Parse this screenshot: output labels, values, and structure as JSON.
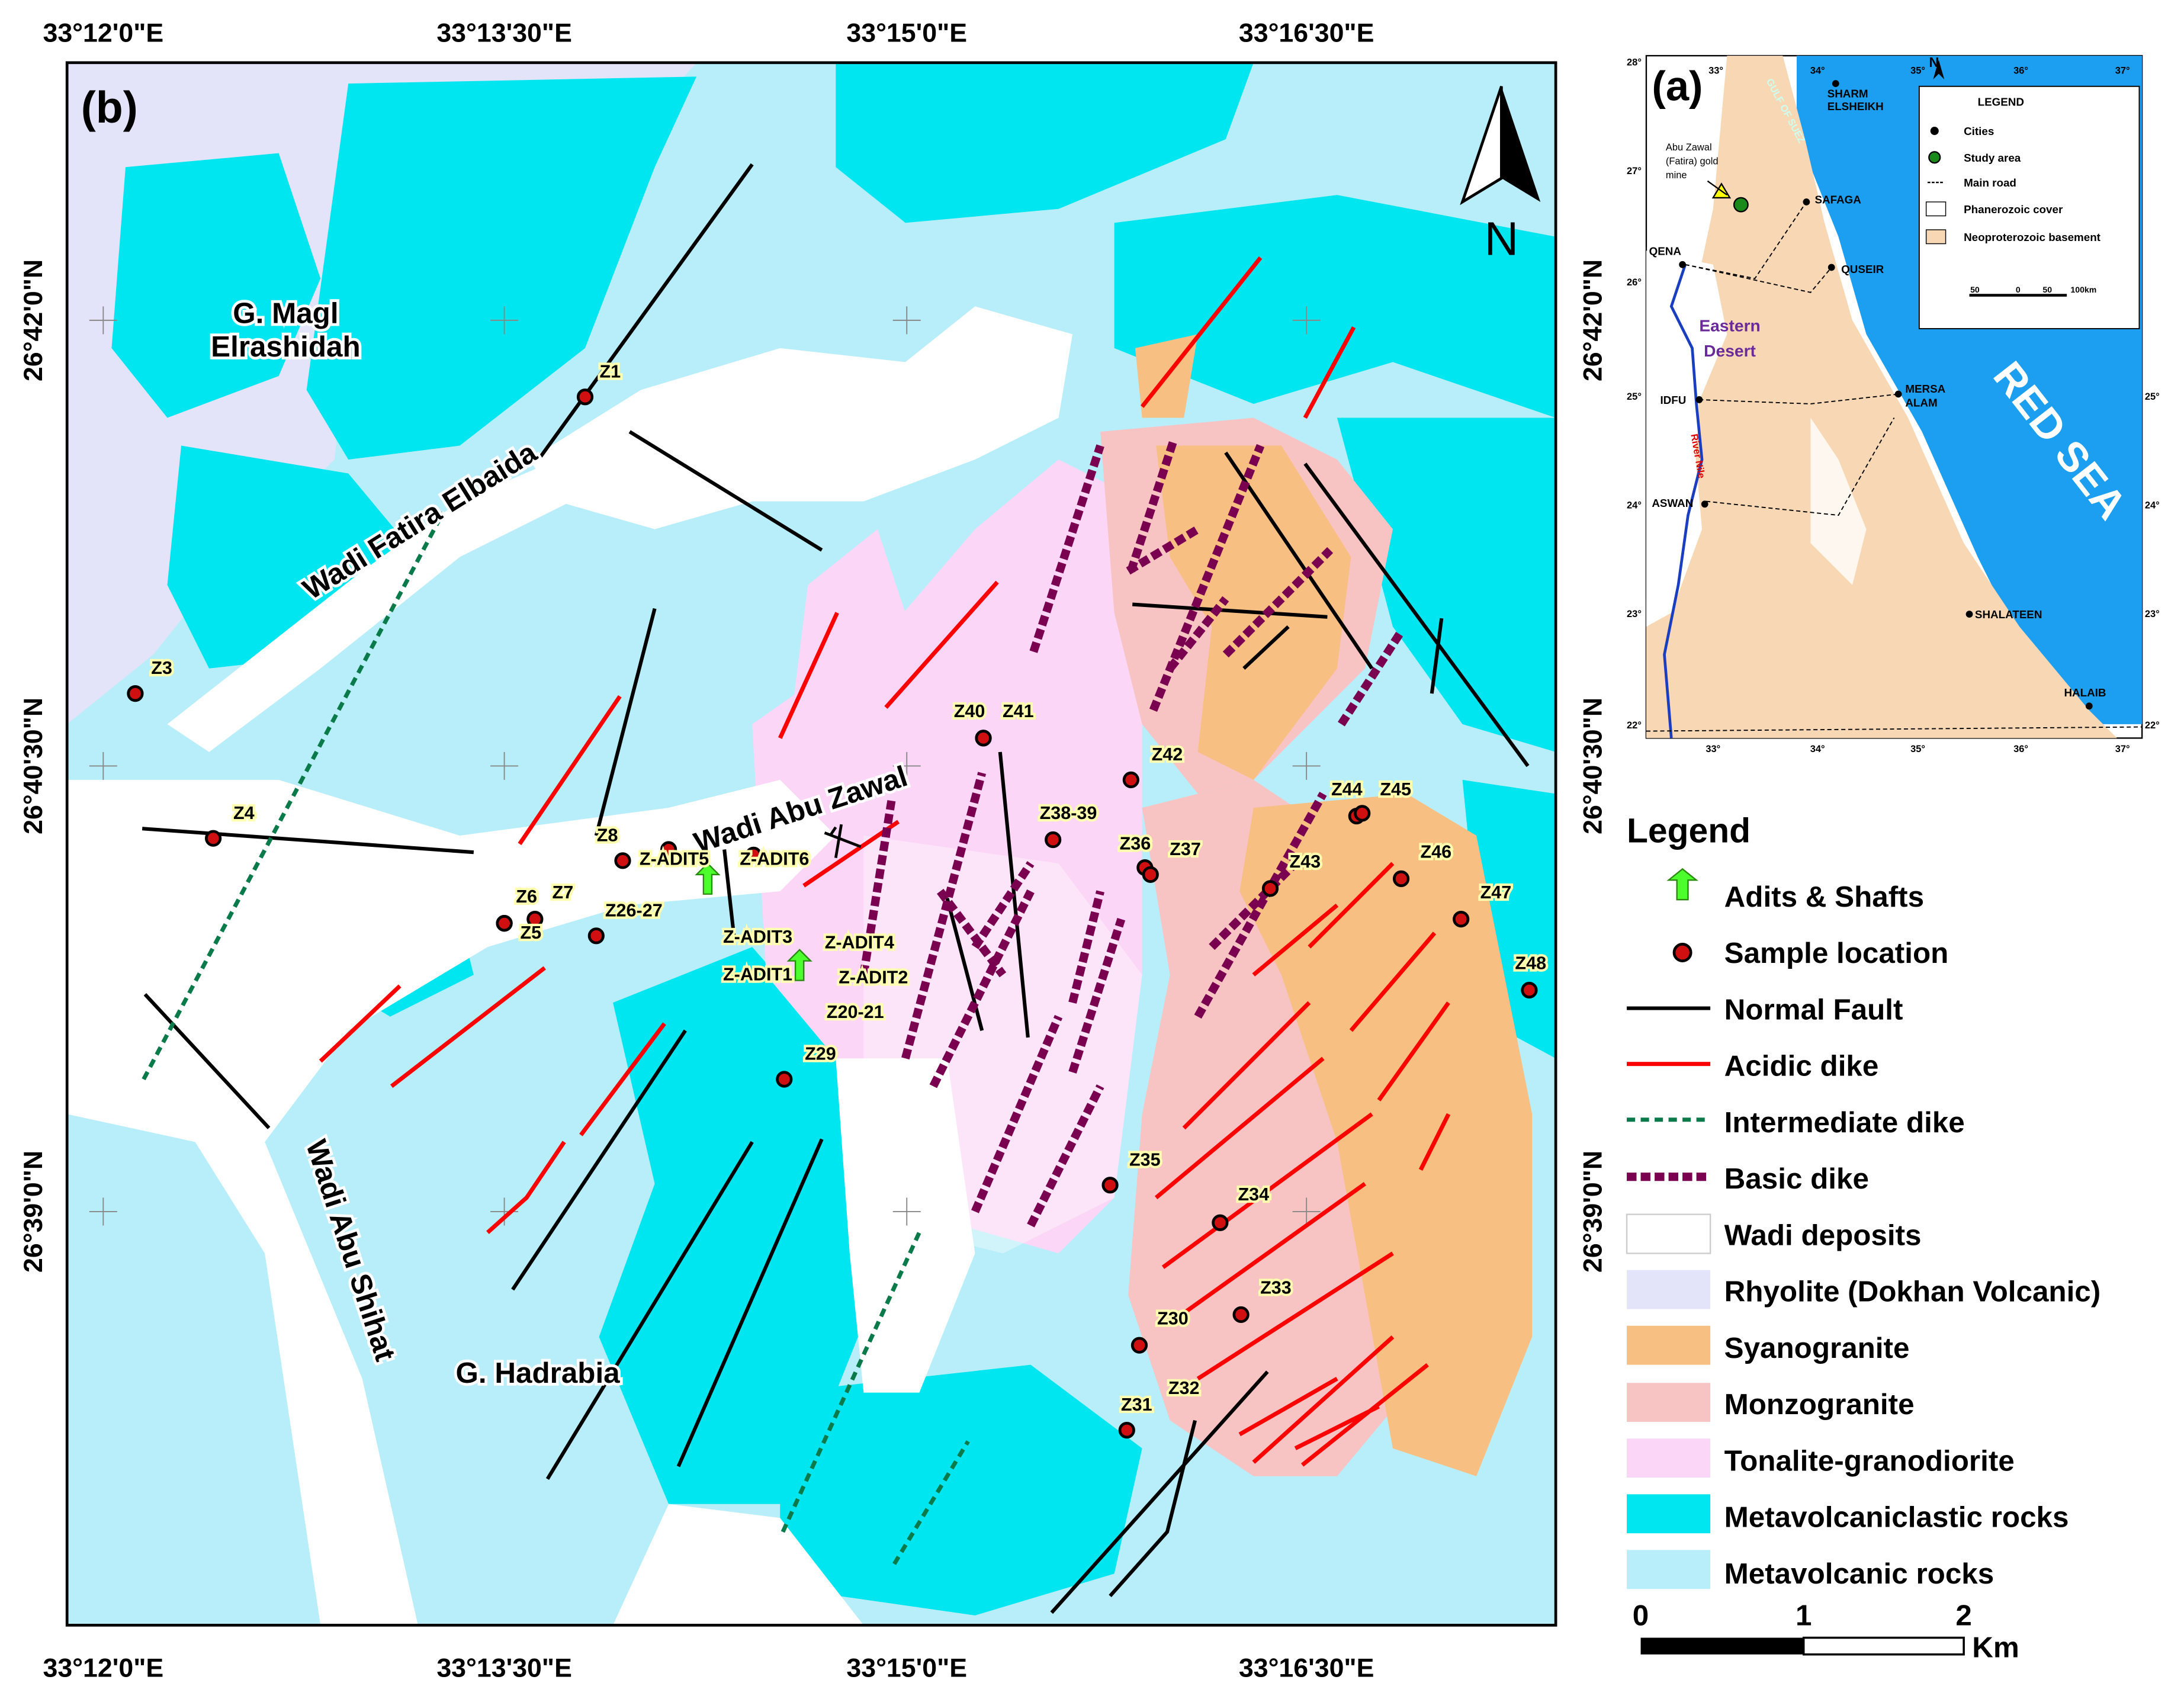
{
  "map_b": {
    "panel_label": "(b)",
    "north": "N",
    "top_coords": [
      "33°12'0\"E",
      "33°13'30\"E",
      "33°15'0\"E",
      "33°16'30\"E"
    ],
    "bottom_coords": [
      "33°12'0\"E",
      "33°13'30\"E",
      "33°15'0\"E",
      "33°16'30\"E"
    ],
    "left_coords": [
      "26°42'0\"N",
      "26°40'30\"N",
      "26°39'0\"N"
    ],
    "right_coords": [
      "26°42'0\"N",
      "26°40'30\"N",
      "26°39'0\"N"
    ],
    "place_names": [
      [
        "G. Magl",
        "Elrashidah"
      ],
      [
        "Wadi Fatira Elbaida"
      ],
      [
        "Wadi Abu Zawal"
      ],
      [
        "Wadi Abu Shihat"
      ],
      [
        "G. Hadrabia"
      ]
    ],
    "samples": [
      "Z1",
      "Z3",
      "Z4",
      "Z8",
      "Z-ADIT5",
      "Z-ADIT6",
      "Z6",
      "Z7",
      "Z5",
      "Z26-27",
      "Z-ADIT3",
      "Z-ADIT4",
      "Z-ADIT1",
      "Z-ADIT2",
      "Z20-21",
      "Z29",
      "Z40",
      "Z41",
      "Z42",
      "Z38-39",
      "Z36",
      "Z37",
      "Z43",
      "Z44",
      "Z45",
      "Z46",
      "Z47",
      "Z48",
      "Z35",
      "Z34",
      "Z33",
      "Z30",
      "Z31",
      "Z32"
    ]
  },
  "inset_a": {
    "panel_label": "(a)",
    "lat_labels": [
      "28°",
      "27°",
      "26°",
      "25°",
      "24°",
      "23°",
      "22°"
    ],
    "lat_labels_right": [
      "25°",
      "24°",
      "23°",
      "22°"
    ],
    "lon_labels": [
      "33°",
      "34°",
      "35°",
      "36°",
      "37°"
    ],
    "cities": [
      "SHARM",
      "ELSHEIKH",
      "SAFAGA",
      "QUSEIR",
      "MERSA",
      "ALAM",
      "SHALATEEN",
      "HALAIB",
      "QENA",
      "IDFU",
      "ASWAN"
    ],
    "mine_label": [
      "Abu Zawal",
      "(Fatira) gold",
      "mine"
    ],
    "region": [
      "Eastern",
      "Desert"
    ],
    "sea": "RED SEA",
    "gulf": "GULF OF SUEZ",
    "river": "River Nile",
    "legend_title": "LEGEND",
    "legend": [
      "Cities",
      "Study area",
      "Main road",
      "Phanerozoic cover",
      "Neoproterozoic basement"
    ],
    "scale": [
      "50",
      "0",
      "50",
      "100km"
    ],
    "north": "N"
  },
  "legend": {
    "title": "Legend",
    "items": [
      "Adits & Shafts",
      "Sample location",
      "Normal Fault",
      "Acidic dike",
      "Intermediate dike",
      "Basic dike",
      "Wadi deposits",
      "Rhyolite (Dokhan Volcanic)",
      "Syanogranite",
      "Monzogranite",
      "Tonalite-granodiorite",
      "Metavolcaniclastic rocks",
      "Metavolcanic rocks"
    ]
  },
  "scale": {
    "ticks": [
      "0",
      "1",
      "2"
    ],
    "unit": "Km"
  }
}
